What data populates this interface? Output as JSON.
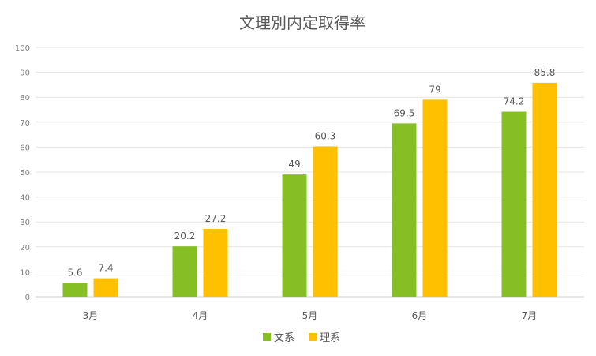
{
  "chart_data": {
    "type": "bar",
    "title": "文理別内定取得率",
    "categories": [
      "3月",
      "4月",
      "5月",
      "6月",
      "7月"
    ],
    "series": [
      {
        "name": "文系",
        "color": "#86bf24",
        "values": [
          5.6,
          20.2,
          49,
          69.5,
          74.2
        ]
      },
      {
        "name": "理系",
        "color": "#ffc000",
        "values": [
          7.4,
          27.2,
          60.3,
          79,
          85.8
        ]
      }
    ],
    "ylim": [
      0,
      100
    ],
    "yticks": [
      0,
      10,
      20,
      30,
      40,
      50,
      60,
      70,
      80,
      90,
      100
    ],
    "grid": true,
    "legend_position": "bottom",
    "data_labels": true
  }
}
